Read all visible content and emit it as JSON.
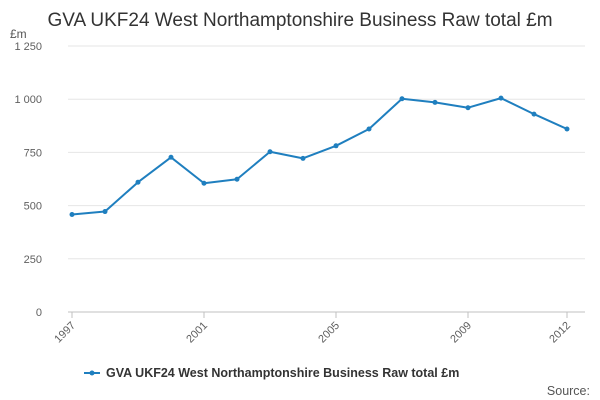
{
  "chart_data": {
    "type": "line",
    "title": "GVA UKF24 West Northamptonshire Business Raw total £m",
    "ylabel": "£m",
    "xlabel": "",
    "ylim": [
      0,
      1250
    ],
    "yticks": [
      0,
      250,
      500,
      750,
      1000,
      1250
    ],
    "ytick_labels": [
      "0",
      "250",
      "500",
      "750",
      "1 000",
      "1 250"
    ],
    "x": [
      1997,
      1998,
      1999,
      2000,
      2001,
      2002,
      2003,
      2004,
      2005,
      2006,
      2007,
      2008,
      2009,
      2010,
      2011,
      2012
    ],
    "xtick_labels": [
      "1997",
      "2001",
      "2005",
      "2009",
      "2012"
    ],
    "series": [
      {
        "name": "GVA UKF24 West Northamptonshire Business Raw total £m",
        "color": "#1f7fbf",
        "values": [
          458,
          472,
          610,
          727,
          605,
          624,
          753,
          722,
          781,
          860,
          1002,
          985,
          960,
          1005,
          930,
          860
        ]
      }
    ],
    "grid": true,
    "legend_position": "bottom"
  },
  "source_label": "Source:"
}
